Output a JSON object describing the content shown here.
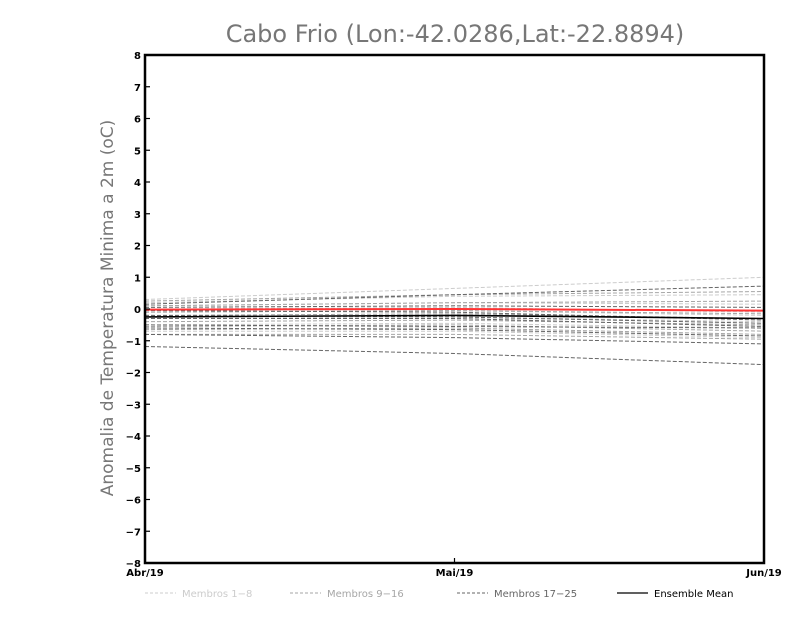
{
  "chart_data": {
    "type": "line",
    "title": "Cabo Frio (Lon:-42.0286,Lat:-22.8894)",
    "ylabel": "Anomalia de Temperatura Minima a 2m (oC)",
    "xlabel": "",
    "categories": [
      "Abr/19",
      "Mai/19",
      "Jun/19"
    ],
    "ylim": [
      -8,
      8
    ],
    "yticks": [
      -8,
      -7,
      -6,
      -5,
      -4,
      -3,
      -2,
      -1,
      0,
      1,
      2,
      3,
      4,
      5,
      6,
      7,
      8
    ],
    "grid": false,
    "legend_position": "bottom",
    "series": [
      {
        "name": "Membros 1-8",
        "group": "m1",
        "values": [
          0.3,
          0.65,
          1.0
        ]
      },
      {
        "name": "Membros 1-8",
        "group": "m1",
        "values": [
          0.2,
          0.4,
          0.45
        ]
      },
      {
        "name": "Membros 1-8",
        "group": "m1",
        "values": [
          0.1,
          0.2,
          0.15
        ]
      },
      {
        "name": "Membros 1-8",
        "group": "m1",
        "values": [
          0.0,
          0.05,
          -0.1
        ]
      },
      {
        "name": "Membros 1-8",
        "group": "m1",
        "values": [
          -0.1,
          -0.05,
          -0.2
        ]
      },
      {
        "name": "Membros 1-8",
        "group": "m1",
        "values": [
          -0.3,
          -0.25,
          -0.4
        ]
      },
      {
        "name": "Membros 1-8",
        "group": "m1",
        "values": [
          -0.5,
          -0.45,
          -0.6
        ]
      },
      {
        "name": "Membros 1-8",
        "group": "m1",
        "values": [
          -0.7,
          -0.7,
          -0.9
        ]
      },
      {
        "name": "Membros 9-16",
        "group": "m2",
        "values": [
          0.25,
          0.45,
          0.55
        ]
      },
      {
        "name": "Membros 9-16",
        "group": "m2",
        "values": [
          0.1,
          0.2,
          0.25
        ]
      },
      {
        "name": "Membros 9-16",
        "group": "m2",
        "values": [
          -0.1,
          -0.05,
          -0.15
        ]
      },
      {
        "name": "Membros 9-16",
        "group": "m2",
        "values": [
          -0.2,
          -0.15,
          -0.3
        ]
      },
      {
        "name": "Membros 9-16",
        "group": "m2",
        "values": [
          -0.4,
          -0.35,
          -0.5
        ]
      },
      {
        "name": "Membros 9-16",
        "group": "m2",
        "values": [
          -0.55,
          -0.5,
          -0.7
        ]
      },
      {
        "name": "Membros 9-16",
        "group": "m2",
        "values": [
          -0.65,
          -0.6,
          -0.8
        ]
      },
      {
        "name": "Membros 9-16",
        "group": "m2",
        "values": [
          -0.8,
          -0.8,
          -0.95
        ]
      },
      {
        "name": "Membros 17-25",
        "group": "m3",
        "values": [
          0.15,
          0.45,
          0.72
        ]
      },
      {
        "name": "Membros 17-25",
        "group": "m3",
        "values": [
          0.05,
          0.1,
          0.05
        ]
      },
      {
        "name": "Membros 17-25",
        "group": "m3",
        "values": [
          -0.05,
          -0.1,
          -0.35
        ]
      },
      {
        "name": "Membros 17-25",
        "group": "m3",
        "values": [
          -0.2,
          -0.25,
          -0.45
        ]
      },
      {
        "name": "Membros 17-25",
        "group": "m3",
        "values": [
          -0.3,
          -0.3,
          -0.55
        ]
      },
      {
        "name": "Membros 17-25",
        "group": "m3",
        "values": [
          -0.5,
          -0.55,
          -0.6
        ]
      },
      {
        "name": "Membros 17-25",
        "group": "m3",
        "values": [
          -0.6,
          -0.65,
          -0.85
        ]
      },
      {
        "name": "Membros 17-25",
        "group": "m3",
        "values": [
          -0.8,
          -0.9,
          -1.1
        ]
      },
      {
        "name": "Membros 17-25",
        "group": "m3",
        "values": [
          -1.18,
          -1.4,
          -1.75
        ]
      },
      {
        "name": "",
        "group": "obs",
        "values": [
          -0.02,
          0.0,
          -0.05
        ]
      },
      {
        "name": "Ensemble Mean",
        "group": "mean",
        "values": [
          -0.25,
          -0.2,
          -0.3
        ]
      }
    ],
    "legend": [
      {
        "label": "Membros 1-8",
        "group": "m1"
      },
      {
        "label": "Membros 9-16",
        "group": "m2"
      },
      {
        "label": "Membros 17-25",
        "group": "m3"
      },
      {
        "label": "Ensemble Mean",
        "group": "mean"
      }
    ],
    "colors": {
      "m1": "#cccccc",
      "m2": "#a6a6a6",
      "m3": "#666666",
      "mean": "#000000",
      "obs": "#ff3333",
      "axis": "#000000",
      "title": "#777777"
    }
  }
}
